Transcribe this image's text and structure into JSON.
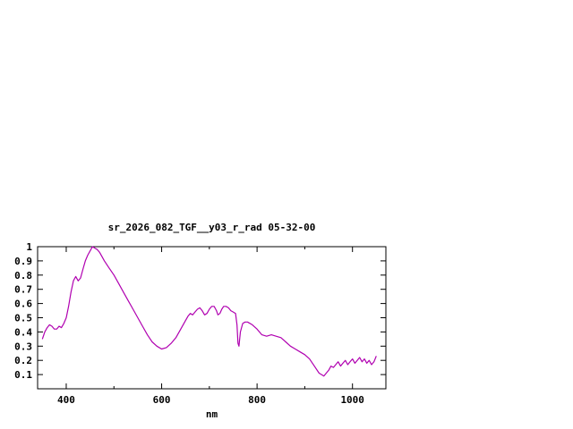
{
  "page": {
    "background_color": "#ffffff"
  },
  "chart_data": {
    "type": "line",
    "title": "sr_2026_082_TGF__y03_r_rad 05-32-00",
    "xlabel": "nm",
    "ylabel": "",
    "xlim": [
      340,
      1070
    ],
    "ylim": [
      0,
      1
    ],
    "grid": false,
    "legend": "none",
    "axis_color": "#000000",
    "line_color": "#b000b0",
    "x_ticks": [
      {
        "value": 400,
        "label": "400"
      },
      {
        "value": 500,
        "label": ""
      },
      {
        "value": 600,
        "label": "600"
      },
      {
        "value": 700,
        "label": ""
      },
      {
        "value": 800,
        "label": "800"
      },
      {
        "value": 900,
        "label": ""
      },
      {
        "value": 1000,
        "label": "1000"
      }
    ],
    "y_ticks": [
      {
        "value": 0.1,
        "label": "0.1"
      },
      {
        "value": 0.2,
        "label": "0.2"
      },
      {
        "value": 0.3,
        "label": "0.3"
      },
      {
        "value": 0.4,
        "label": "0.4"
      },
      {
        "value": 0.5,
        "label": "0.5"
      },
      {
        "value": 0.6,
        "label": "0.6"
      },
      {
        "value": 0.7,
        "label": "0.7"
      },
      {
        "value": 0.8,
        "label": "0.8"
      },
      {
        "value": 0.9,
        "label": "0.9"
      },
      {
        "value": 1.0,
        "label": "1"
      }
    ],
    "series": [
      {
        "name": "sr_2026_082_TGF__y03_r_rad 05-32-00",
        "x": [
          350,
          355,
          360,
          365,
          370,
          375,
          380,
          385,
          390,
          395,
          400,
          405,
          410,
          415,
          420,
          425,
          430,
          435,
          440,
          445,
          450,
          455,
          460,
          465,
          470,
          475,
          480,
          490,
          500,
          510,
          520,
          530,
          540,
          550,
          560,
          570,
          580,
          590,
          600,
          610,
          620,
          630,
          640,
          650,
          655,
          660,
          665,
          670,
          675,
          680,
          685,
          690,
          695,
          700,
          705,
          710,
          715,
          718,
          722,
          726,
          730,
          735,
          740,
          745,
          750,
          755,
          758,
          760,
          762,
          765,
          770,
          775,
          780,
          790,
          800,
          810,
          820,
          830,
          840,
          850,
          860,
          870,
          880,
          890,
          900,
          910,
          920,
          930,
          935,
          940,
          945,
          950,
          955,
          960,
          965,
          970,
          975,
          980,
          985,
          990,
          995,
          1000,
          1005,
          1010,
          1015,
          1020,
          1025,
          1030,
          1035,
          1040,
          1045,
          1050
        ],
        "y": [
          0.35,
          0.4,
          0.43,
          0.45,
          0.44,
          0.42,
          0.42,
          0.44,
          0.43,
          0.46,
          0.5,
          0.58,
          0.68,
          0.76,
          0.79,
          0.76,
          0.78,
          0.84,
          0.9,
          0.94,
          0.97,
          1.0,
          0.99,
          0.98,
          0.96,
          0.93,
          0.9,
          0.85,
          0.8,
          0.74,
          0.68,
          0.62,
          0.56,
          0.5,
          0.44,
          0.38,
          0.33,
          0.3,
          0.28,
          0.29,
          0.32,
          0.36,
          0.42,
          0.48,
          0.51,
          0.53,
          0.52,
          0.54,
          0.56,
          0.57,
          0.55,
          0.52,
          0.53,
          0.56,
          0.58,
          0.58,
          0.55,
          0.52,
          0.53,
          0.56,
          0.58,
          0.58,
          0.57,
          0.55,
          0.54,
          0.53,
          0.45,
          0.32,
          0.3,
          0.4,
          0.46,
          0.47,
          0.47,
          0.45,
          0.42,
          0.38,
          0.37,
          0.38,
          0.37,
          0.36,
          0.33,
          0.3,
          0.28,
          0.26,
          0.24,
          0.21,
          0.16,
          0.11,
          0.1,
          0.09,
          0.11,
          0.13,
          0.16,
          0.15,
          0.17,
          0.19,
          0.16,
          0.18,
          0.2,
          0.17,
          0.19,
          0.21,
          0.18,
          0.2,
          0.22,
          0.19,
          0.21,
          0.18,
          0.2,
          0.17,
          0.19,
          0.23
        ]
      }
    ]
  }
}
